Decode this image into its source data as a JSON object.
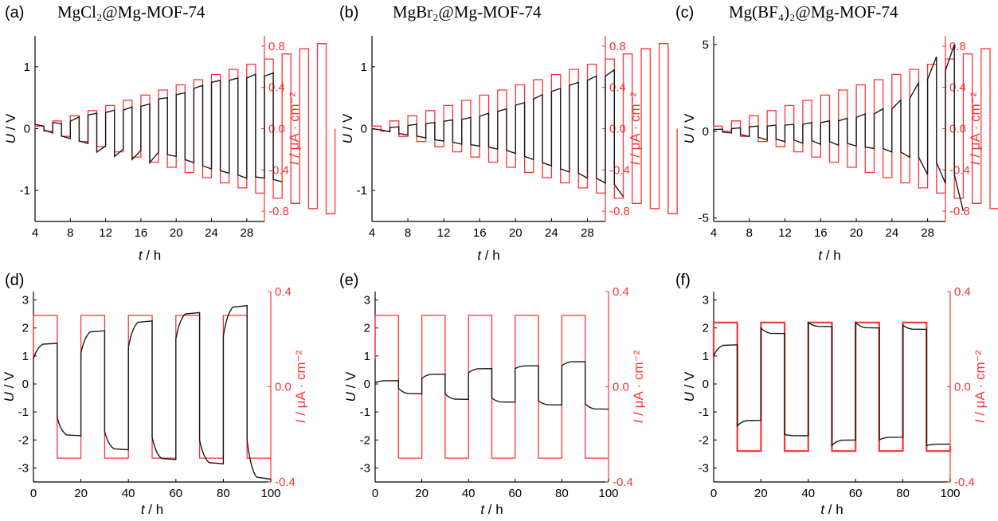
{
  "figure": {
    "colors": {
      "voltage": "#1a1a1a",
      "current": "#ff3333",
      "axis": "#000000"
    },
    "panels": [
      {
        "label": "(a)",
        "title": "MgCl₂@Mg-MOF-74",
        "xlabel_var": "t",
        "xlabel_unit": " / h",
        "ylabel_var": "U",
        "ylabel_unit": " / V",
        "y2label_var": "I",
        "y2label_unit": " / μA · cm⁻²",
        "xticks": [
          "4",
          "8",
          "12",
          "16",
          "20",
          "24",
          "28"
        ],
        "yticks": [
          "1",
          "0",
          "-1"
        ],
        "y2ticks": [
          "0.8",
          "0.4",
          "0.0",
          "-0.4",
          "-0.8"
        ]
      },
      {
        "label": "(b)",
        "title": "MgBr₂@Mg-MOF-74",
        "xlabel_var": "t",
        "xlabel_unit": " / h",
        "ylabel_var": "U",
        "ylabel_unit": " / V",
        "y2label_var": "I",
        "y2label_unit": " / μA · cm⁻²",
        "xticks": [
          "4",
          "8",
          "12",
          "16",
          "20",
          "24",
          "28"
        ],
        "yticks": [
          "1",
          "0",
          "-1"
        ],
        "y2ticks": [
          "0.8",
          "0.4",
          "0.0",
          "-0.4",
          "-0.8"
        ]
      },
      {
        "label": "(c)",
        "title": "Mg(BF₄)₂@Mg-MOF-74",
        "xlabel_var": "t",
        "xlabel_unit": " / h",
        "ylabel_var": "U",
        "ylabel_unit": " / V",
        "y2label_var": "I",
        "y2label_unit": " / μA · cm⁻²",
        "xticks": [
          "4",
          "8",
          "12",
          "16",
          "20",
          "24",
          "28"
        ],
        "yticks": [
          "5",
          "0",
          "-5"
        ],
        "y2ticks": [
          "0.8",
          "0.4",
          "0.0",
          "-0.4",
          "-0.8"
        ]
      },
      {
        "label": "(d)",
        "title": "",
        "xlabel_var": "t",
        "xlabel_unit": " / h",
        "ylabel_var": "U",
        "ylabel_unit": " / V",
        "y2label_var": "I",
        "y2label_unit": " / μA · cm⁻²",
        "xticks": [
          "0",
          "20",
          "40",
          "60",
          "80",
          "100"
        ],
        "yticks": [
          "3",
          "2",
          "1",
          "0",
          "-1",
          "-2",
          "-3"
        ],
        "y2ticks": [
          "0.4",
          "0.0",
          "-0.4"
        ]
      },
      {
        "label": "(e)",
        "title": "",
        "xlabel_var": "t",
        "xlabel_unit": " / h",
        "ylabel_var": "U",
        "ylabel_unit": " / V",
        "y2label_var": "I",
        "y2label_unit": " / μA · cm⁻²",
        "xticks": [
          "0",
          "20",
          "40",
          "60",
          "80",
          "100"
        ],
        "yticks": [
          "3",
          "2",
          "1",
          "0",
          "-1",
          "-2",
          "-3"
        ],
        "y2ticks": [
          "0.4",
          "0.0",
          "-0.4"
        ]
      },
      {
        "label": "(f)",
        "title": "",
        "xlabel_var": "t",
        "xlabel_unit": " / h",
        "ylabel_var": "U",
        "ylabel_unit": " / V",
        "y2label_var": "I",
        "y2label_unit": " / μA · cm⁻²",
        "xticks": [
          "0",
          "20",
          "40",
          "60",
          "80",
          "100"
        ],
        "yticks": [
          "3",
          "2",
          "1",
          "0",
          "-1",
          "-2",
          "-3"
        ],
        "y2ticks": [
          "0.4",
          "0.0",
          "-0.4"
        ]
      }
    ]
  },
  "chart_data": [
    {
      "type": "line",
      "panel": "(a)",
      "xlim": [
        4,
        30
      ],
      "ylim": [
        -1.5,
        1.5
      ],
      "y2lim": [
        -0.9,
        0.9
      ],
      "xticks": [
        4,
        8,
        12,
        16,
        20,
        24,
        28
      ],
      "yticks": [
        1,
        0,
        -1
      ],
      "y2ticks": [
        0.8,
        0.4,
        0.0,
        -0.4,
        -0.8
      ],
      "series": [
        {
          "axis": "y2",
          "color": "#ff3333",
          "kind": "square",
          "t_start": 4,
          "half_period": 1,
          "amplitudes": [
            0.025,
            0.075,
            0.125,
            0.175,
            0.225,
            0.275,
            0.325,
            0.375,
            0.425,
            0.475,
            0.525,
            0.575,
            0.625,
            0.675,
            0.725,
            0.775,
            0.825
          ]
        },
        {
          "axis": "y",
          "color": "#1a1a1a",
          "kind": "segments",
          "t_start": 4,
          "half_period": 1,
          "values": [
            [
              0.07,
              0.04
            ],
            [
              -0.02,
              -0.07
            ],
            [
              0.1,
              0.08
            ],
            [
              -0.12,
              -0.16
            ],
            [
              0.12,
              0.19
            ],
            [
              -0.2,
              -0.24
            ],
            [
              0.22,
              0.25
            ],
            [
              -0.38,
              -0.28
            ],
            [
              0.26,
              0.3
            ],
            [
              -0.45,
              -0.33
            ],
            [
              0.3,
              0.35
            ],
            [
              -0.5,
              -0.35
            ],
            [
              0.36,
              0.4
            ],
            [
              -0.55,
              -0.38
            ],
            [
              0.48,
              0.5
            ],
            [
              -0.42,
              -0.45
            ],
            [
              0.55,
              0.58
            ],
            [
              -0.5,
              -0.55
            ],
            [
              0.65,
              0.7
            ],
            [
              -0.6,
              -0.65
            ],
            [
              0.75,
              0.78
            ],
            [
              -0.68,
              -0.72
            ],
            [
              0.78,
              0.82
            ],
            [
              -0.75,
              -0.8
            ],
            [
              0.82,
              0.88
            ],
            [
              -0.78,
              -0.8
            ],
            [
              0.85,
              0.9
            ],
            [
              -0.82,
              -0.86
            ]
          ]
        }
      ]
    },
    {
      "type": "line",
      "panel": "(b)",
      "xlim": [
        4,
        30
      ],
      "ylim": [
        -1.5,
        1.5
      ],
      "y2lim": [
        -0.9,
        0.9
      ],
      "xticks": [
        4,
        8,
        12,
        16,
        20,
        24,
        28
      ],
      "yticks": [
        1,
        0,
        -1
      ],
      "y2ticks": [
        0.8,
        0.4,
        0.0,
        -0.4,
        -0.8
      ],
      "series": [
        {
          "axis": "y2",
          "color": "#ff3333",
          "kind": "square",
          "t_start": 4,
          "half_period": 1,
          "amplitudes": [
            0.025,
            0.075,
            0.125,
            0.175,
            0.225,
            0.275,
            0.325,
            0.375,
            0.425,
            0.475,
            0.525,
            0.575,
            0.625,
            0.675,
            0.725,
            0.775,
            0.825
          ]
        },
        {
          "axis": "y",
          "color": "#1a1a1a",
          "kind": "segments",
          "t_start": 4,
          "half_period": 1,
          "values": [
            [
              0.0,
              -0.02
            ],
            [
              -0.02,
              -0.05
            ],
            [
              0.02,
              0.03
            ],
            [
              -0.08,
              -0.1
            ],
            [
              0.05,
              0.07
            ],
            [
              -0.12,
              -0.15
            ],
            [
              0.08,
              0.1
            ],
            [
              -0.18,
              -0.2
            ],
            [
              0.12,
              0.14
            ],
            [
              -0.22,
              -0.25
            ],
            [
              0.15,
              0.18
            ],
            [
              -0.26,
              -0.28
            ],
            [
              0.2,
              0.25
            ],
            [
              -0.3,
              -0.33
            ],
            [
              0.28,
              0.32
            ],
            [
              -0.35,
              -0.4
            ],
            [
              0.38,
              0.42
            ],
            [
              -0.45,
              -0.5
            ],
            [
              0.48,
              0.55
            ],
            [
              -0.55,
              -0.6
            ],
            [
              0.6,
              0.65
            ],
            [
              -0.65,
              -0.7
            ],
            [
              0.7,
              0.75
            ],
            [
              -0.72,
              -0.8
            ],
            [
              0.78,
              0.85
            ],
            [
              -0.8,
              -0.88
            ],
            [
              0.85,
              0.95
            ],
            [
              -0.9,
              -1.1
            ]
          ]
        }
      ]
    },
    {
      "type": "line",
      "panel": "(c)",
      "xlim": [
        4,
        30
      ],
      "ylim": [
        -5.2,
        5.5
      ],
      "y2lim": [
        -0.9,
        0.9
      ],
      "xticks": [
        4,
        8,
        12,
        16,
        20,
        24,
        28
      ],
      "yticks": [
        5,
        0,
        -5
      ],
      "y2ticks": [
        0.8,
        0.4,
        0.0,
        -0.4,
        -0.8
      ],
      "series": [
        {
          "axis": "y2",
          "color": "#ff3333",
          "kind": "square",
          "t_start": 4,
          "half_period": 1,
          "amplitudes": [
            0.025,
            0.075,
            0.125,
            0.175,
            0.225,
            0.275,
            0.325,
            0.375,
            0.425,
            0.475,
            0.525,
            0.575,
            0.625,
            0.675,
            0.725,
            0.775,
            0.825
          ]
        },
        {
          "axis": "y",
          "color": "#1a1a1a",
          "kind": "segments",
          "t_start": 4,
          "half_period": 1,
          "values": [
            [
              0.1,
              0.12
            ],
            [
              -0.05,
              -0.1
            ],
            [
              0.15,
              0.2
            ],
            [
              -0.2,
              -0.3
            ],
            [
              0.25,
              0.3
            ],
            [
              -0.35,
              -0.5
            ],
            [
              0.3,
              0.35
            ],
            [
              -0.45,
              -0.6
            ],
            [
              0.35,
              0.4
            ],
            [
              -0.5,
              -0.7
            ],
            [
              0.4,
              0.5
            ],
            [
              -0.55,
              -0.75
            ],
            [
              0.5,
              0.6
            ],
            [
              -0.6,
              -0.8
            ],
            [
              0.6,
              0.75
            ],
            [
              -0.7,
              -0.85
            ],
            [
              0.8,
              1.0
            ],
            [
              -0.9,
              -1.0
            ],
            [
              1.0,
              1.3
            ],
            [
              -1.0,
              -1.2
            ],
            [
              1.3,
              1.8
            ],
            [
              -1.2,
              -1.5
            ],
            [
              1.9,
              2.8
            ],
            [
              -1.5,
              -2.5
            ],
            [
              3.0,
              4.3
            ],
            [
              -1.8,
              -3.0
            ],
            [
              3.5,
              5.0
            ],
            [
              -2.5,
              -4.6
            ]
          ]
        }
      ]
    },
    {
      "type": "line",
      "panel": "(d)",
      "xlim": [
        0,
        100
      ],
      "ylim": [
        -3.5,
        3.3
      ],
      "y2lim": [
        -0.4,
        0.4
      ],
      "xticks": [
        0,
        20,
        40,
        60,
        80,
        100
      ],
      "yticks": [
        3,
        2,
        1,
        0,
        -1,
        -2,
        -3
      ],
      "y2ticks": [
        0.4,
        0.0,
        -0.4
      ],
      "series": [
        {
          "axis": "y2",
          "color": "#ff3333",
          "kind": "square",
          "t_start": 0,
          "half_period": 10,
          "amplitude": 0.3,
          "cycles": 5,
          "tail": -0.3
        },
        {
          "axis": "y",
          "color": "#1a1a1a",
          "kind": "relax",
          "t_start": 0,
          "half_period": 10,
          "values": [
            [
              0.9,
              1.45
            ],
            [
              -1.2,
              -1.85
            ],
            [
              1.1,
              1.9
            ],
            [
              -1.7,
              -2.35
            ],
            [
              1.3,
              2.25
            ],
            [
              -1.9,
              -2.7
            ],
            [
              1.6,
              2.55
            ],
            [
              -2.0,
              -2.85
            ],
            [
              1.7,
              2.8
            ],
            [
              -2.0,
              -3.4
            ]
          ]
        }
      ]
    },
    {
      "type": "line",
      "panel": "(e)",
      "xlim": [
        0,
        100
      ],
      "ylim": [
        -3.5,
        3.3
      ],
      "y2lim": [
        -0.4,
        0.4
      ],
      "xticks": [
        0,
        20,
        40,
        60,
        80,
        100
      ],
      "yticks": [
        3,
        2,
        1,
        0,
        -1,
        -2,
        -3
      ],
      "y2ticks": [
        0.4,
        0.0,
        -0.4
      ],
      "series": [
        {
          "axis": "y2",
          "color": "#ff3333",
          "kind": "square",
          "t_start": 0,
          "half_period": 10,
          "amplitude": 0.3,
          "cycles": 5,
          "tail": -0.3
        },
        {
          "axis": "y",
          "color": "#1a1a1a",
          "kind": "relax",
          "t_start": 0,
          "half_period": 10,
          "values": [
            [
              0.05,
              0.12
            ],
            [
              -0.15,
              -0.35
            ],
            [
              0.2,
              0.35
            ],
            [
              -0.35,
              -0.55
            ],
            [
              0.4,
              0.55
            ],
            [
              -0.5,
              -0.65
            ],
            [
              0.55,
              0.65
            ],
            [
              -0.6,
              -0.75
            ],
            [
              0.65,
              0.8
            ],
            [
              -0.7,
              -0.9
            ]
          ]
        }
      ]
    },
    {
      "type": "line",
      "panel": "(f)",
      "xlim": [
        0,
        100
      ],
      "ylim": [
        -3.5,
        3.3
      ],
      "y2lim": [
        -0.4,
        0.4
      ],
      "xticks": [
        0,
        20,
        40,
        60,
        80,
        100
      ],
      "yticks": [
        3,
        2,
        1,
        0,
        -1,
        -2,
        -3
      ],
      "y2ticks": [
        0.4,
        0.0,
        -0.4
      ],
      "series": [
        {
          "axis": "y2",
          "color": "#ff3333",
          "kind": "square",
          "t_start": 0,
          "half_period": 10,
          "amplitude": 0.27,
          "cycles": 5,
          "tail": -0.25,
          "noisy": true
        },
        {
          "axis": "y",
          "color": "#1a1a1a",
          "kind": "relax",
          "t_start": 0,
          "half_period": 10,
          "values": [
            [
              1.0,
              1.4
            ],
            [
              -1.5,
              -1.3
            ],
            [
              2.0,
              1.8
            ],
            [
              -1.8,
              -1.85
            ],
            [
              2.2,
              2.05
            ],
            [
              -2.2,
              -2.0
            ],
            [
              2.2,
              2.0
            ],
            [
              -2.0,
              -1.9
            ],
            [
              2.1,
              1.95
            ],
            [
              -2.2,
              -2.15
            ]
          ]
        }
      ]
    }
  ]
}
